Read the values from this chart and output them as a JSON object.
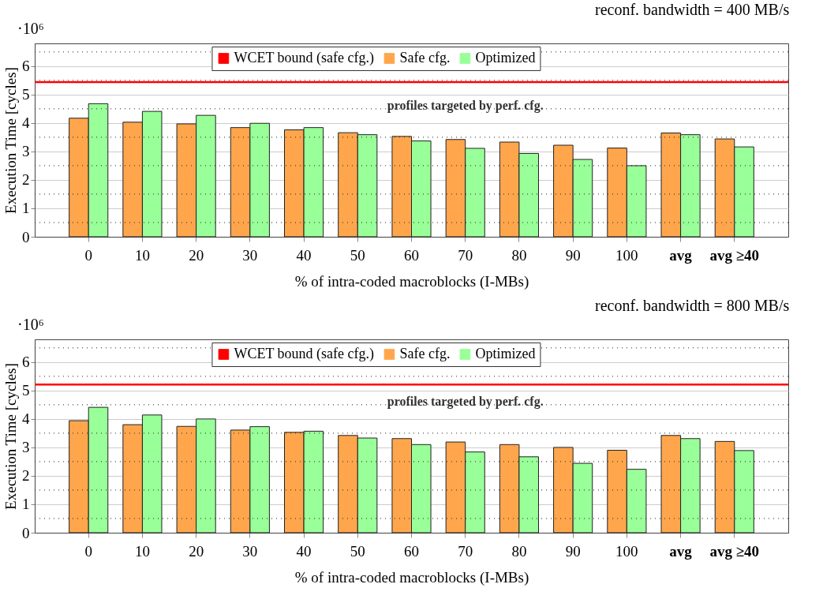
{
  "chart_data": [
    {
      "type": "bar",
      "title": "reconf. bandwidth = 400 MB/s",
      "xlabel": "% of intra-coded macroblocks (I-MBs)",
      "ylabel": "Execution Time [cycles]",
      "annotations": [
        "·10⁶",
        "profiles targeted by perf. cfg."
      ],
      "categories": [
        "0",
        "10",
        "20",
        "30",
        "40",
        "50",
        "60",
        "70",
        "80",
        "90",
        "100",
        "avg",
        "avg ≥40"
      ],
      "series": [
        {
          "name": "Safe cfg.",
          "color": "#ffa64d",
          "values": [
            4.17,
            4.03,
            3.97,
            3.84,
            3.76,
            3.66,
            3.53,
            3.42,
            3.33,
            3.22,
            3.12,
            3.65,
            3.44
          ]
        },
        {
          "name": "Optimized",
          "color": "#99ff99",
          "values": [
            4.68,
            4.41,
            4.27,
            3.99,
            3.84,
            3.59,
            3.37,
            3.11,
            2.93,
            2.72,
            2.5,
            3.59,
            3.16
          ]
        }
      ],
      "ref_lines": [
        {
          "axis": "y",
          "value": 5.44,
          "label": "WCET bound (safe cfg.)",
          "color": "#ff0000"
        }
      ],
      "ylim": [
        0,
        6.8
      ],
      "yticks": [
        0,
        {
          "value": 0.5,
          "label": null
        },
        1,
        {
          "value": 1.5,
          "label": null
        },
        2,
        {
          "value": 2.5,
          "label": null
        },
        3,
        {
          "value": 3.5,
          "label": null
        },
        4,
        {
          "value": 4.5,
          "label": null
        },
        5,
        {
          "value": 5.5,
          "label": null
        },
        6,
        {
          "value": 6.5,
          "label": null
        }
      ],
      "grid": true,
      "legend": "top"
    },
    {
      "type": "bar",
      "title": "reconf. bandwidth = 800 MB/s",
      "xlabel": "% of intra-coded macroblocks (I-MBs)",
      "ylabel": "Execution Time [cycles]",
      "annotations": [
        "·10⁶",
        "profiles targeted by perf. cfg."
      ],
      "categories": [
        "0",
        "10",
        "20",
        "30",
        "40",
        "50",
        "60",
        "70",
        "80",
        "90",
        "100",
        "avg",
        "avg ≥40"
      ],
      "series": [
        {
          "name": "Safe cfg.",
          "color": "#ffa64d",
          "values": [
            3.94,
            3.8,
            3.74,
            3.61,
            3.53,
            3.42,
            3.31,
            3.19,
            3.1,
            3.0,
            2.9,
            3.42,
            3.21
          ]
        },
        {
          "name": "Optimized",
          "color": "#99ff99",
          "values": [
            4.41,
            4.14,
            4.0,
            3.73,
            3.57,
            3.33,
            3.1,
            2.84,
            2.67,
            2.44,
            2.23,
            3.31,
            2.89
          ]
        }
      ],
      "ref_lines": [
        {
          "axis": "y",
          "value": 5.21,
          "label": "WCET bound (safe cfg.)",
          "color": "#ff0000"
        }
      ],
      "ylim": [
        0,
        6.8
      ],
      "yticks": [
        0,
        {
          "value": 0.5,
          "label": null
        },
        1,
        {
          "value": 1.5,
          "label": null
        },
        2,
        {
          "value": 2.5,
          "label": null
        },
        3,
        {
          "value": 3.5,
          "label": null
        },
        4,
        {
          "value": 4.5,
          "label": null
        },
        5,
        {
          "value": 5.5,
          "label": null
        },
        6,
        {
          "value": 6.5,
          "label": null
        }
      ],
      "grid": true,
      "legend": "top"
    }
  ]
}
